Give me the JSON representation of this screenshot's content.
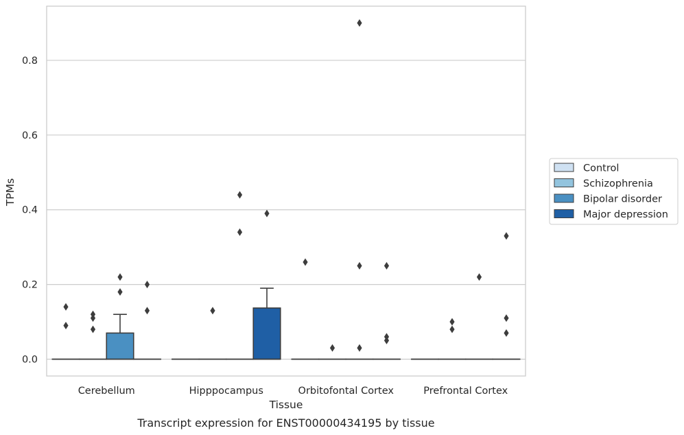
{
  "caption": "Transcript expression for ENST00000434195 by tissue",
  "chart_data": {
    "type": "box",
    "title": "",
    "xlabel": "Tissue",
    "ylabel": "TPMs",
    "ylim": [
      -0.045,
      0.945
    ],
    "yticks": [
      0.0,
      0.2,
      0.4,
      0.6,
      0.8
    ],
    "ytick_labels": [
      "0.0",
      "0.2",
      "0.4",
      "0.6",
      "0.8"
    ],
    "grid": "horizontal",
    "legend_position": "right",
    "categories": [
      "Cerebellum",
      "Hipppocampus",
      "Orbitofontal Cortex",
      "Prefrontal Cortex"
    ],
    "series": [
      {
        "name": "Control",
        "color": "#cfe1f2",
        "boxes": [
          {
            "q1": 0,
            "median": 0,
            "q3": 0,
            "whisker_low": 0,
            "whisker_high": 0,
            "outliers": [
              0.09,
              0.14
            ]
          },
          {
            "q1": 0,
            "median": 0,
            "q3": 0,
            "whisker_low": 0,
            "whisker_high": 0,
            "outliers": []
          },
          {
            "q1": 0,
            "median": 0,
            "q3": 0,
            "whisker_low": 0,
            "whisker_high": 0,
            "outliers": [
              0.26
            ]
          },
          {
            "q1": 0,
            "median": 0,
            "q3": 0,
            "whisker_low": 0,
            "whisker_high": 0,
            "outliers": []
          }
        ]
      },
      {
        "name": "Schizophrenia",
        "color": "#93c4de",
        "boxes": [
          {
            "q1": 0,
            "median": 0,
            "q3": 0,
            "whisker_low": 0,
            "whisker_high": 0,
            "outliers": [
              0.08,
              0.11,
              0.12
            ]
          },
          {
            "q1": 0,
            "median": 0,
            "q3": 0,
            "whisker_low": 0,
            "whisker_high": 0,
            "outliers": [
              0.13
            ]
          },
          {
            "q1": 0,
            "median": 0,
            "q3": 0,
            "whisker_low": 0,
            "whisker_high": 0,
            "outliers": [
              0.03
            ]
          },
          {
            "q1": 0,
            "median": 0,
            "q3": 0,
            "whisker_low": 0,
            "whisker_high": 0,
            "outliers": [
              0.08,
              0.1
            ]
          }
        ]
      },
      {
        "name": "Bipolar disorder",
        "color": "#4a90c2",
        "boxes": [
          {
            "q1": 0,
            "median": 0,
            "q3": 0.07,
            "whisker_low": 0,
            "whisker_high": 0.12,
            "outliers": [
              0.18,
              0.22
            ]
          },
          {
            "q1": 0,
            "median": 0,
            "q3": 0,
            "whisker_low": 0,
            "whisker_high": 0,
            "outliers": [
              0.34,
              0.44
            ]
          },
          {
            "q1": 0,
            "median": 0,
            "q3": 0,
            "whisker_low": 0,
            "whisker_high": 0,
            "outliers": [
              0.03,
              0.25,
              0.9
            ]
          },
          {
            "q1": 0,
            "median": 0,
            "q3": 0,
            "whisker_low": 0,
            "whisker_high": 0,
            "outliers": [
              0.22
            ]
          }
        ]
      },
      {
        "name": "Major depression",
        "color": "#1f5fa5",
        "boxes": [
          {
            "q1": 0,
            "median": 0,
            "q3": 0,
            "whisker_low": 0,
            "whisker_high": 0,
            "outliers": [
              0.13,
              0.2
            ]
          },
          {
            "q1": 0,
            "median": 0,
            "q3": 0.137,
            "whisker_low": 0,
            "whisker_high": 0.19,
            "outliers": [
              0.39
            ]
          },
          {
            "q1": 0,
            "median": 0,
            "q3": 0,
            "whisker_low": 0,
            "whisker_high": 0,
            "outliers": [
              0.05,
              0.06,
              0.25
            ]
          },
          {
            "q1": 0,
            "median": 0,
            "q3": 0,
            "whisker_low": 0,
            "whisker_high": 0,
            "outliers": [
              0.07,
              0.11,
              0.33
            ]
          }
        ]
      }
    ]
  }
}
